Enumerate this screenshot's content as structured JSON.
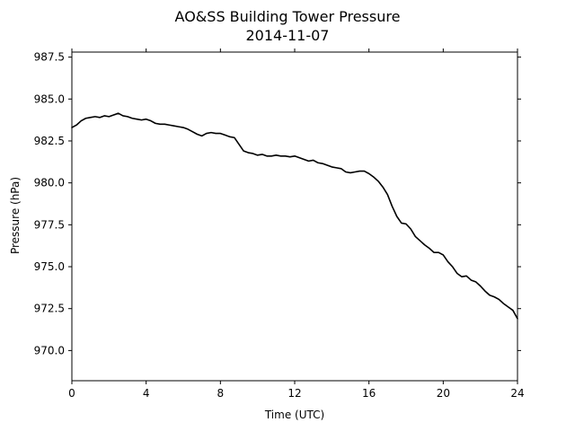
{
  "chart_data": {
    "type": "line",
    "title": "AO&SS Building Tower Pressure",
    "subtitle": "2014-11-07",
    "xlabel": "Time (UTC)",
    "ylabel": "Pressure (hPa)",
    "xlim": [
      0,
      24
    ],
    "ylim": [
      968.2,
      987.8
    ],
    "xticks": [
      0,
      4,
      8,
      12,
      16,
      20,
      24
    ],
    "yticks": [
      970.0,
      972.5,
      975.0,
      977.5,
      980.0,
      982.5,
      985.0,
      987.5
    ],
    "xtick_labels": [
      "0",
      "4",
      "8",
      "12",
      "16",
      "20",
      "24"
    ],
    "ytick_labels": [
      "970.0",
      "972.5",
      "975.0",
      "977.5",
      "980.0",
      "982.5",
      "985.0",
      "987.5"
    ],
    "grid": false,
    "line_color": "#000000",
    "series": [
      {
        "x": [
          0,
          0.25,
          0.5,
          0.75,
          1.0,
          1.25,
          1.5,
          1.75,
          2.0,
          2.25,
          2.5,
          2.75,
          3.0,
          3.25,
          3.5,
          3.75,
          4.0,
          4.25,
          4.5,
          4.75,
          5.0,
          5.25,
          5.5,
          5.75,
          6.0,
          6.25,
          6.5,
          6.75,
          7.0,
          7.25,
          7.5,
          7.75,
          8.0,
          8.25,
          8.5,
          8.75,
          9.0,
          9.25,
          9.5,
          9.75,
          10.0,
          10.25,
          10.5,
          10.75,
          11.0,
          11.25,
          11.5,
          11.75,
          12.0,
          12.25,
          12.5,
          12.75,
          13.0,
          13.25,
          13.5,
          13.75,
          14.0,
          14.25,
          14.5,
          14.75,
          15.0,
          15.25,
          15.5,
          15.75,
          16.0,
          16.25,
          16.5,
          16.75,
          17.0,
          17.25,
          17.5,
          17.75,
          18.0,
          18.25,
          18.5,
          18.75,
          19.0,
          19.25,
          19.5,
          19.75,
          20.0,
          20.25,
          20.5,
          20.75,
          21.0,
          21.25,
          21.5,
          21.75,
          22.0,
          22.25,
          22.5,
          22.75,
          23.0,
          23.25,
          23.5,
          23.75,
          24.0
        ],
        "y": [
          983.3,
          983.45,
          983.7,
          983.85,
          983.9,
          983.95,
          983.9,
          984.0,
          983.95,
          984.05,
          984.15,
          984.0,
          983.95,
          983.85,
          983.8,
          983.75,
          983.8,
          983.7,
          983.55,
          983.5,
          983.5,
          983.45,
          983.4,
          983.35,
          983.3,
          983.2,
          983.05,
          982.9,
          982.8,
          982.95,
          983.0,
          982.95,
          982.95,
          982.85,
          982.75,
          982.7,
          982.3,
          981.9,
          981.8,
          981.75,
          981.65,
          981.7,
          981.6,
          981.6,
          981.65,
          981.6,
          981.6,
          981.55,
          981.6,
          981.5,
          981.4,
          981.3,
          981.35,
          981.2,
          981.15,
          981.05,
          980.95,
          980.9,
          980.85,
          980.65,
          980.6,
          980.65,
          980.7,
          980.7,
          980.55,
          980.35,
          980.1,
          979.75,
          979.3,
          978.6,
          978.0,
          977.6,
          977.55,
          977.25,
          976.8,
          976.55,
          976.3,
          976.1,
          975.85,
          975.85,
          975.7,
          975.3,
          975.0,
          974.6,
          974.4,
          974.45,
          974.2,
          974.1,
          973.85,
          973.55,
          973.3,
          973.2,
          973.05,
          972.8,
          972.6,
          972.4,
          971.9
        ]
      }
    ]
  }
}
